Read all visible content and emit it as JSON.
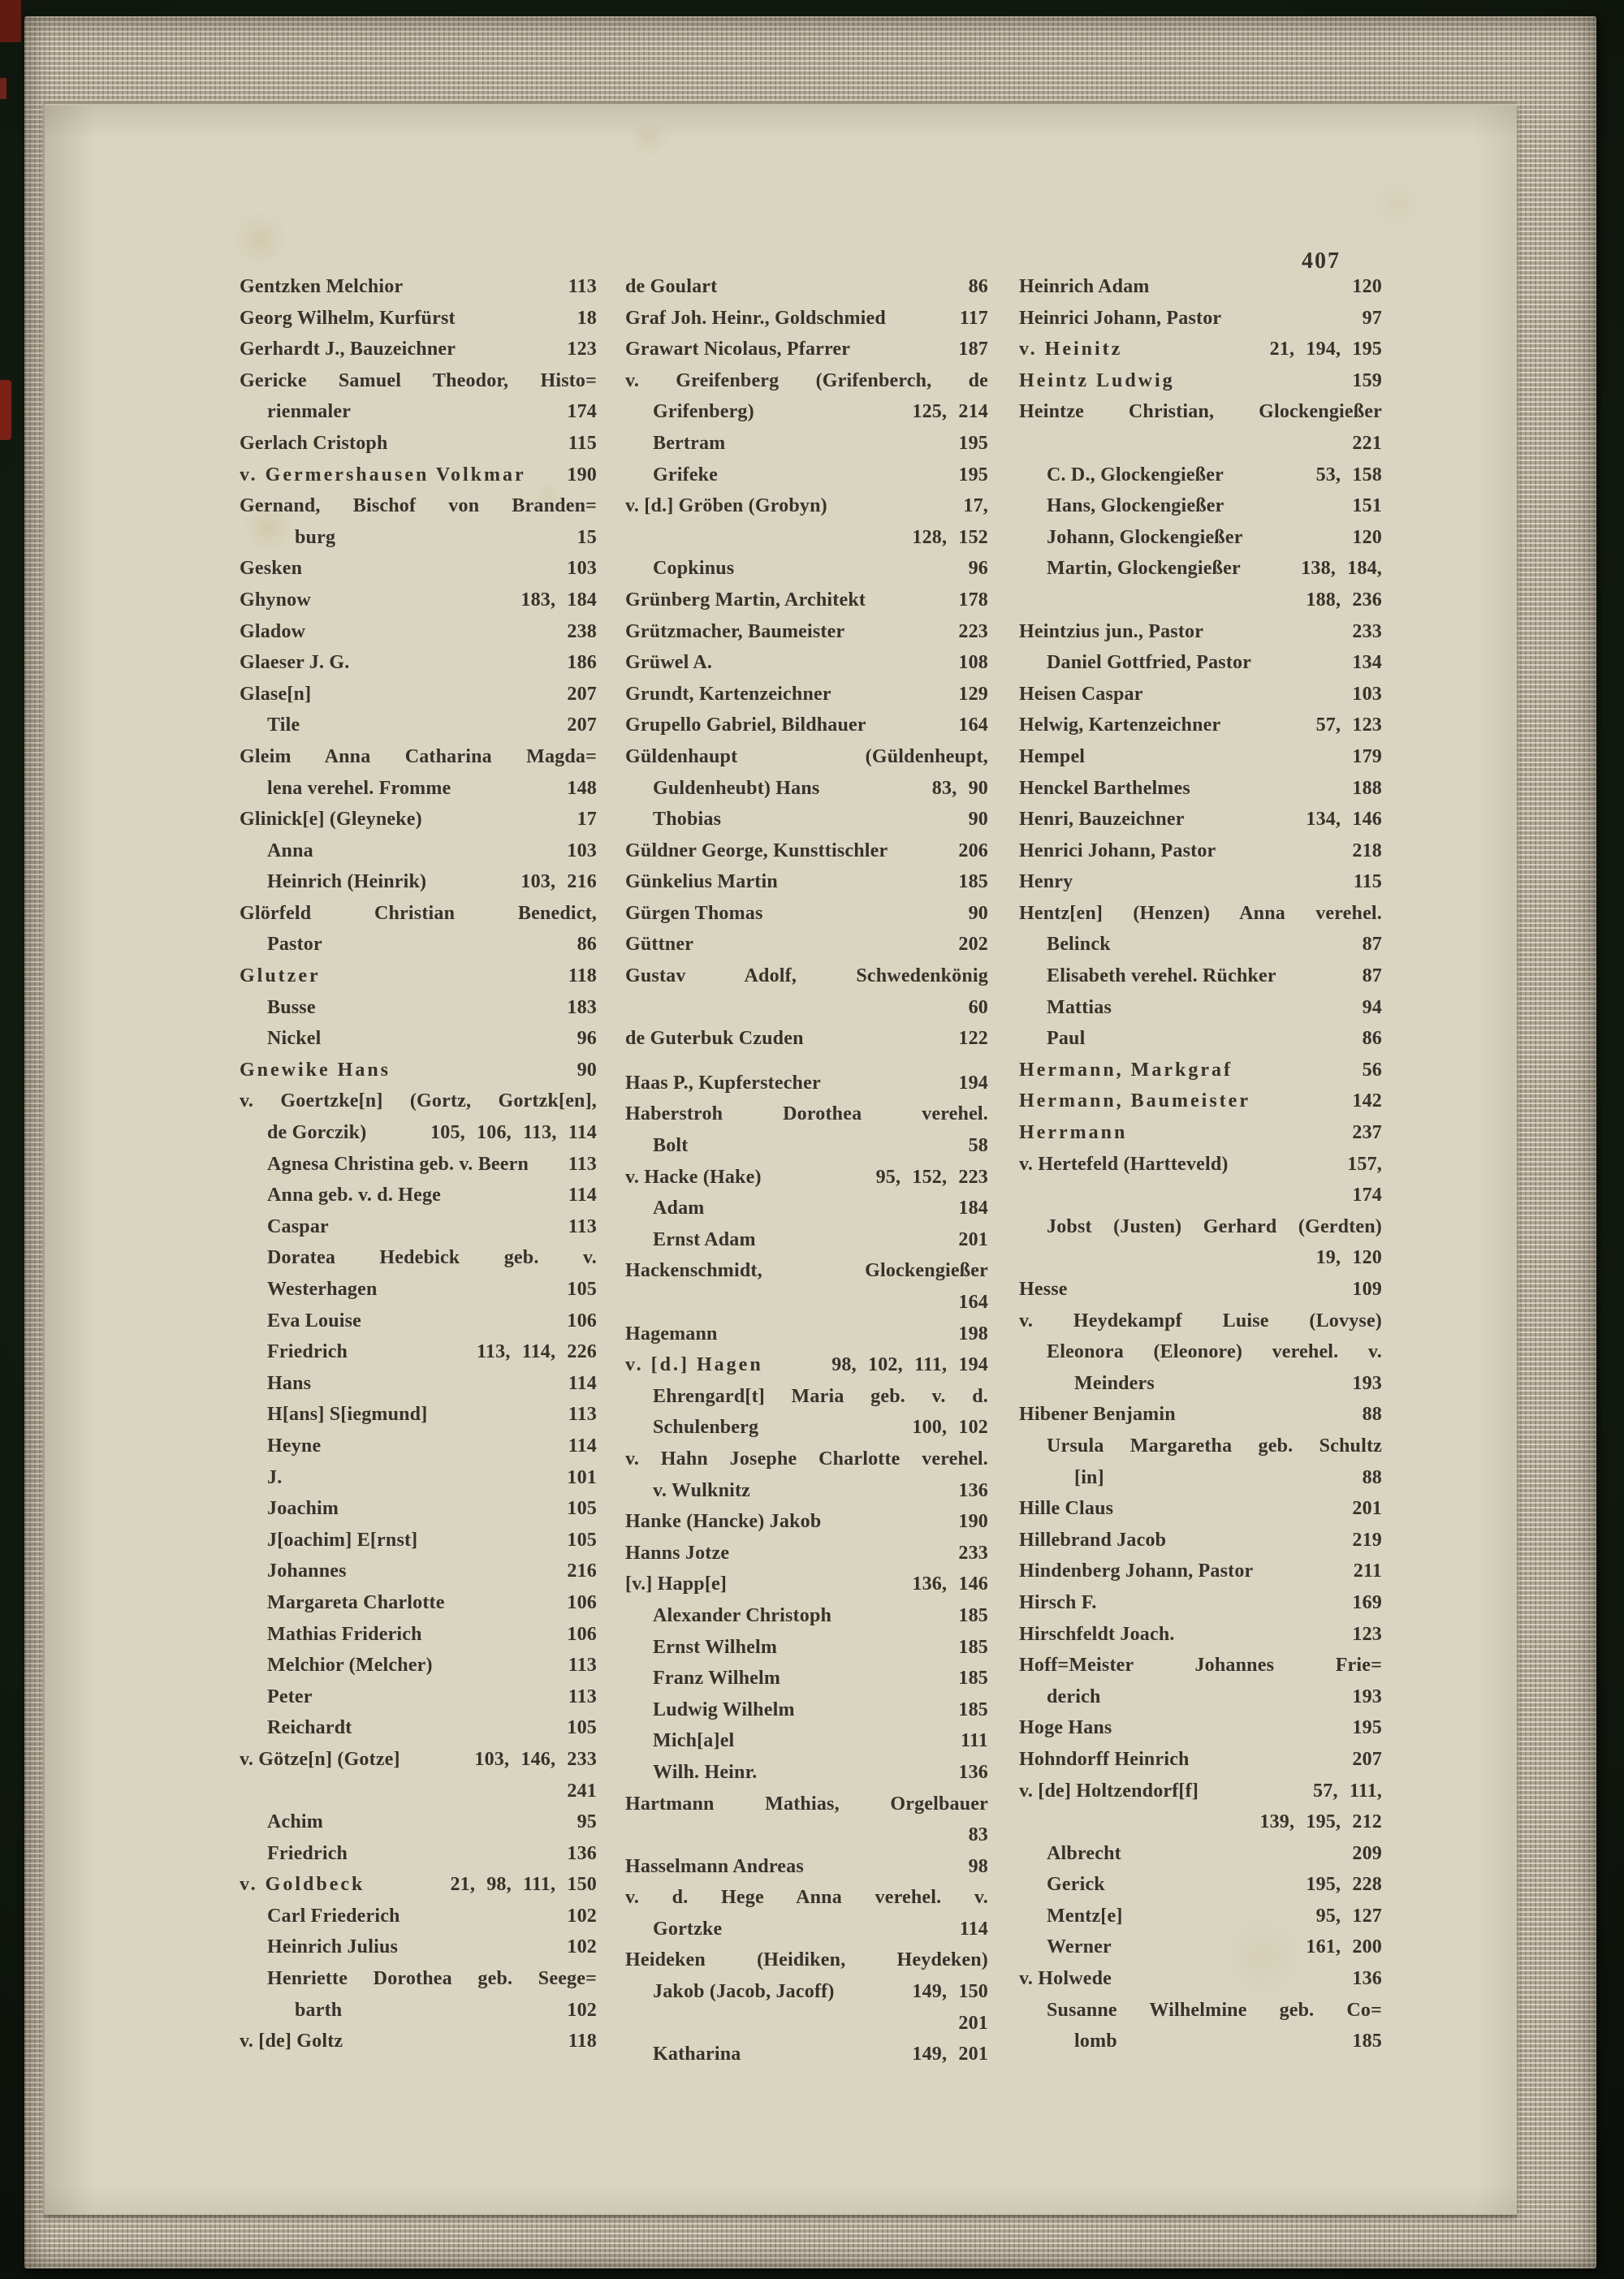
{
  "page_number": "407",
  "colors": {
    "background": "#121a10",
    "cover_fabric": "#b0a794",
    "paper": "#d8d5c1",
    "ink": "#37322a",
    "page_edge_red": "#7a2117"
  },
  "columns": [
    {
      "lines": [
        {
          "t": "Gentzken Melchior",
          "p": "113"
        },
        {
          "t": "Georg Wilhelm, Kurfürst",
          "p": "18"
        },
        {
          "t": "Gerhardt J., Bauzeichner",
          "p": "123"
        },
        {
          "t": "Gericke Samuel Theodor, Histo=",
          "j": 1
        },
        {
          "t": "rienmaler",
          "p": "174",
          "i": 1
        },
        {
          "t": "Gerlach Cristoph",
          "p": "115"
        },
        {
          "t": "v. Germershausen Volkmar",
          "p": "190",
          "s": 1
        },
        {
          "t": "Gernand, Bischof von Branden=",
          "j": 1
        },
        {
          "t": "burg",
          "p": "15",
          "i": 2
        },
        {
          "t": "Gesken",
          "p": "103"
        },
        {
          "t": "Ghynow",
          "p": "183, 184"
        },
        {
          "t": "Gladow",
          "p": "238"
        },
        {
          "t": "Glaeser J. G.",
          "p": "186"
        },
        {
          "t": "Glase[n]",
          "p": "207"
        },
        {
          "t": "Tile",
          "p": "207",
          "i": 1
        },
        {
          "t": "Gleim Anna Catharina Magda=",
          "j": 1
        },
        {
          "t": "lena verehel. Fromme",
          "p": "148",
          "i": 1
        },
        {
          "t": "Glinick[e] (Gleyneke)",
          "p": "17"
        },
        {
          "t": "Anna",
          "p": "103",
          "i": 1
        },
        {
          "t": "Heinrich (Heinrik)",
          "p": "103, 216",
          "i": 1
        },
        {
          "t": "Glörfeld Christian Benedict,",
          "j": 1
        },
        {
          "t": "Pastor",
          "p": "86",
          "i": 1
        },
        {
          "t": "Glutzer",
          "p": "118",
          "s": 1
        },
        {
          "t": "Busse",
          "p": "183",
          "i": 1
        },
        {
          "t": "Nickel",
          "p": "96",
          "i": 1
        },
        {
          "t": "Gnewike Hans",
          "p": "90",
          "s": 1
        },
        {
          "t": "v. Goertzke[n] (Gortz, Gortzk[en],",
          "j": 1
        },
        {
          "t": "de Gorczik)",
          "p": "105, 106, 113, 114",
          "i": 1
        },
        {
          "t": "Agnesa Christina geb. v. Beern",
          "p": "113",
          "i": 1
        },
        {
          "t": "Anna geb. v. d. Hege",
          "p": "114",
          "i": 1
        },
        {
          "t": "Caspar",
          "p": "113",
          "i": 1
        },
        {
          "t": "Doratea Hedebick geb. v.",
          "i": 1,
          "j": 1
        },
        {
          "t": "Westerhagen",
          "p": "105",
          "i": 1
        },
        {
          "t": "Eva Louise",
          "p": "106",
          "i": 1
        },
        {
          "t": "Friedrich",
          "p": "113, 114, 226",
          "i": 1
        },
        {
          "t": "Hans",
          "p": "114",
          "i": 1
        },
        {
          "t": "H[ans] S[iegmund]",
          "p": "113",
          "i": 1
        },
        {
          "t": "Heyne",
          "p": "114",
          "i": 1
        },
        {
          "t": "J.",
          "p": "101",
          "i": 1
        },
        {
          "t": "Joachim",
          "p": "105",
          "i": 1
        },
        {
          "t": "J[oachim] E[rnst]",
          "p": "105",
          "i": 1
        },
        {
          "t": "Johannes",
          "p": "216",
          "i": 1
        },
        {
          "t": "Margareta Charlotte",
          "p": "106",
          "i": 1
        },
        {
          "t": "Mathias Friderich",
          "p": "106",
          "i": 1
        },
        {
          "t": "Melchior (Melcher)",
          "p": "113",
          "i": 1
        },
        {
          "t": "Peter",
          "p": "113",
          "i": 1
        },
        {
          "t": "Reichardt",
          "p": "105",
          "i": 1
        },
        {
          "t": "v. Götze[n] (Gotze]",
          "p": "103, 146, 233"
        },
        {
          "p": "241"
        },
        {
          "t": "Achim",
          "p": "95",
          "i": 1
        },
        {
          "t": "Friedrich",
          "p": "136",
          "i": 1
        },
        {
          "t": "v. Goldbeck",
          "p": "21, 98, 111, 150",
          "s": 1
        },
        {
          "t": "Carl Friederich",
          "p": "102",
          "i": 1
        },
        {
          "t": "Heinrich Julius",
          "p": "102",
          "i": 1
        },
        {
          "t": "Henriette Dorothea geb. Seege=",
          "i": 1,
          "j": 1
        },
        {
          "t": "barth",
          "p": "102",
          "i": 2
        },
        {
          "t": "v. [de] Goltz",
          "p": "118"
        }
      ]
    },
    {
      "lines": [
        {
          "t": "de Goulart",
          "p": "86"
        },
        {
          "t": "Graf Joh. Heinr., Goldschmied",
          "p": "117"
        },
        {
          "t": "Grawart Nicolaus, Pfarrer",
          "p": "187"
        },
        {
          "t": "v. Greifenberg (Grifenberch, de",
          "j": 1
        },
        {
          "t": "Grifenberg)",
          "p": "125, 214",
          "i": 1
        },
        {
          "t": "Bertram",
          "p": "195",
          "i": 1
        },
        {
          "t": "Grifeke",
          "p": "195",
          "i": 1
        },
        {
          "t": "v. [d.] Gröben (Grobyn)",
          "p": "17,"
        },
        {
          "p": "128, 152"
        },
        {
          "t": "Copkinus",
          "p": "96",
          "i": 1
        },
        {
          "t": "Grünberg Martin, Architekt",
          "p": "178"
        },
        {
          "t": "Grützmacher, Baumeister",
          "p": "223"
        },
        {
          "t": "Grüwel A.",
          "p": "108"
        },
        {
          "t": "Grundt, Kartenzeichner",
          "p": "129"
        },
        {
          "t": "Grupello Gabriel, Bildhauer",
          "p": "164"
        },
        {
          "t": "Güldenhaupt (Güldenheupt,",
          "j": 1
        },
        {
          "t": "Guldenheubt) Hans",
          "p": "83, 90",
          "i": 1
        },
        {
          "t": "Thobias",
          "p": "90",
          "i": 1
        },
        {
          "t": "Güldner George, Kunsttischler",
          "p": "206"
        },
        {
          "t": "Günkelius Martin",
          "p": "185"
        },
        {
          "t": "Gürgen Thomas",
          "p": "90"
        },
        {
          "t": "Güttner",
          "p": "202"
        },
        {
          "t": "Gustav Adolf, Schwedenkönig",
          "j": 1
        },
        {
          "p": "60"
        },
        {
          "t": "de Guterbuk Czuden",
          "p": "122"
        },
        {
          "t": "Haas P., Kupferstecher",
          "p": "194",
          "g": 1
        },
        {
          "t": "Haberstroh Dorothea verehel.",
          "j": 1
        },
        {
          "t": "Bolt",
          "p": "58",
          "i": 1
        },
        {
          "t": "v. Hacke (Hake)",
          "p": "95, 152, 223"
        },
        {
          "t": "Adam",
          "p": "184",
          "i": 1
        },
        {
          "t": "Ernst Adam",
          "p": "201",
          "i": 1
        },
        {
          "t": "Hackenschmidt, Glockengießer",
          "j": 1
        },
        {
          "p": "164"
        },
        {
          "t": "Hagemann",
          "p": "198"
        },
        {
          "t": "v. [d.] Hagen",
          "p": "98, 102, 111, 194",
          "s": 1
        },
        {
          "t": "Ehrengard[t] Maria geb. v. d.",
          "i": 1,
          "j": 1
        },
        {
          "t": "Schulenberg",
          "p": "100, 102",
          "i": 1
        },
        {
          "t": "v. Hahn Josephe Charlotte verehel.",
          "j": 1
        },
        {
          "t": "v. Wulknitz",
          "p": "136",
          "i": 1
        },
        {
          "t": "Hanke (Hancke) Jakob",
          "p": "190"
        },
        {
          "t": "Hanns Jotze",
          "p": "233"
        },
        {
          "t": "[v.] Happ[e]",
          "p": "136, 146"
        },
        {
          "t": "Alexander Christoph",
          "p": "185",
          "i": 1
        },
        {
          "t": "Ernst Wilhelm",
          "p": "185",
          "i": 1
        },
        {
          "t": "Franz Wilhelm",
          "p": "185",
          "i": 1
        },
        {
          "t": "Ludwig Wilhelm",
          "p": "185",
          "i": 1
        },
        {
          "t": "Mich[a]el",
          "p": "111",
          "i": 1
        },
        {
          "t": "Wilh. Heinr.",
          "p": "136",
          "i": 1
        },
        {
          "t": "Hartmann Mathias, Orgelbauer",
          "j": 1
        },
        {
          "p": "83"
        },
        {
          "t": "Hasselmann Andreas",
          "p": "98"
        },
        {
          "t": "v. d. Hege Anna verehel. v.",
          "j": 1
        },
        {
          "t": "Gortzke",
          "p": "114",
          "i": 1
        },
        {
          "t": "Heideken (Heidiken, Heydeken)",
          "j": 1
        },
        {
          "t": "Jakob (Jacob, Jacoff)",
          "p": "149, 150",
          "i": 1
        },
        {
          "p": "201"
        },
        {
          "t": "Katharina",
          "p": "149, 201",
          "i": 1
        }
      ]
    },
    {
      "lines": [
        {
          "t": "Heinrich Adam",
          "p": "120"
        },
        {
          "t": "Heinrici Johann, Pastor",
          "p": "97"
        },
        {
          "t": "v. Heinitz",
          "p": "21, 194, 195",
          "s": 1
        },
        {
          "t": "Heintz Ludwig",
          "p": "159",
          "s": 1
        },
        {
          "t": "Heintze Christian, Glockengießer",
          "j": 1
        },
        {
          "p": "221"
        },
        {
          "t": "C. D., Glockengießer",
          "p": "53, 158",
          "i": 1
        },
        {
          "t": "Hans, Glockengießer",
          "p": "151",
          "i": 1
        },
        {
          "t": "Johann, Glockengießer",
          "p": "120",
          "i": 1
        },
        {
          "t": "Martin, Glockengießer",
          "p": "138, 184,",
          "i": 1
        },
        {
          "p": "188, 236"
        },
        {
          "t": "Heintzius jun., Pastor",
          "p": "233"
        },
        {
          "t": "Daniel Gottfried, Pastor",
          "p": "134",
          "i": 1
        },
        {
          "t": "Heisen Caspar",
          "p": "103"
        },
        {
          "t": "Helwig, Kartenzeichner",
          "p": "57, 123"
        },
        {
          "t": "Hempel",
          "p": "179"
        },
        {
          "t": "Henckel Barthelmes",
          "p": "188"
        },
        {
          "t": "Henri, Bauzeichner",
          "p": "134, 146"
        },
        {
          "t": "Henrici Johann, Pastor",
          "p": "218"
        },
        {
          "t": "Henry",
          "p": "115"
        },
        {
          "t": "Hentz[en] (Henzen) Anna verehel.",
          "j": 1
        },
        {
          "t": "Belinck",
          "p": "87",
          "i": 1
        },
        {
          "t": "Elisabeth verehel. Rüchker",
          "p": "87",
          "i": 1
        },
        {
          "t": "Mattias",
          "p": "94",
          "i": 1
        },
        {
          "t": "Paul",
          "p": "86",
          "i": 1
        },
        {
          "t": "Hermann, Markgraf",
          "p": "56",
          "s": 1
        },
        {
          "t": "Hermann, Baumeister",
          "p": "142",
          "s": 1
        },
        {
          "t": "Herrmann",
          "p": "237",
          "s": 1
        },
        {
          "t": "v. Hertefeld (Hartteveld)",
          "p": "157,"
        },
        {
          "p": "174"
        },
        {
          "t": "Jobst (Justen) Gerhard (Gerdten)",
          "i": 1,
          "j": 1
        },
        {
          "p": "19, 120"
        },
        {
          "t": "Hesse",
          "p": "109"
        },
        {
          "t": "v. Heydekampf Luise (Lovyse)",
          "j": 1
        },
        {
          "t": "Eleonora (Eleonore) verehel. v.",
          "i": 1,
          "j": 1
        },
        {
          "t": "Meinders",
          "p": "193",
          "i": 2
        },
        {
          "t": "Hibener Benjamin",
          "p": "88"
        },
        {
          "t": "Ursula Margaretha geb. Schultz",
          "i": 1,
          "j": 1
        },
        {
          "t": "[in]",
          "p": "88",
          "i": 2
        },
        {
          "t": "Hille Claus",
          "p": "201"
        },
        {
          "t": "Hillebrand Jacob",
          "p": "219"
        },
        {
          "t": "Hindenberg Johann, Pastor",
          "p": "211"
        },
        {
          "t": "Hirsch F.",
          "p": "169"
        },
        {
          "t": "Hirschfeldt Joach.",
          "p": "123"
        },
        {
          "t": "Hoff=Meister Johannes Frie=",
          "j": 1
        },
        {
          "t": "derich",
          "p": "193",
          "i": 1
        },
        {
          "t": "Hoge Hans",
          "p": "195"
        },
        {
          "t": "Hohndorff Heinrich",
          "p": "207"
        },
        {
          "t": "v. [de] Holtzendorf[f]",
          "p": "57, 111,"
        },
        {
          "p": "139, 195, 212"
        },
        {
          "t": "Albrecht",
          "p": "209",
          "i": 1
        },
        {
          "t": "Gerick",
          "p": "195, 228",
          "i": 1
        },
        {
          "t": "Mentz[e]",
          "p": "95, 127",
          "i": 1
        },
        {
          "t": "Werner",
          "p": "161, 200",
          "i": 1
        },
        {
          "t": "v. Holwede",
          "p": "136"
        },
        {
          "t": "Susanne Wilhelmine geb. Co=",
          "i": 1,
          "j": 1
        },
        {
          "t": "lomb",
          "p": "185",
          "i": 2
        }
      ]
    }
  ]
}
